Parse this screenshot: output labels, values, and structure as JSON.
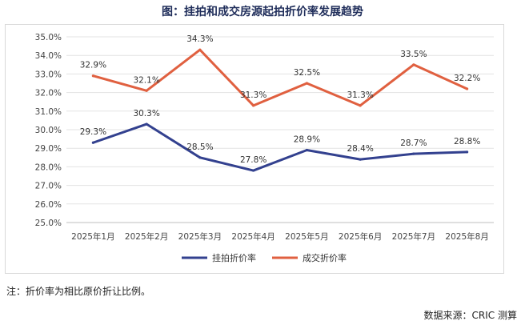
{
  "chart_data": {
    "type": "line",
    "title": "图：挂拍和成交房源起拍折价率发展趋势",
    "categories": [
      "2025年1月",
      "2025年2月",
      "2025年3月",
      "2025年4月",
      "2025年5月",
      "2025年6月",
      "2025年7月",
      "2025年8月"
    ],
    "series": [
      {
        "name": "挂拍折价率",
        "color": "#33418f",
        "values": [
          29.3,
          30.3,
          28.5,
          27.8,
          28.9,
          28.4,
          28.7,
          28.8
        ],
        "labels": [
          "29.3%",
          "30.3%",
          "28.5%",
          "27.8%",
          "28.9%",
          "28.4%",
          "28.7%",
          "28.8%"
        ]
      },
      {
        "name": "成交折价率",
        "color": "#e06040",
        "values": [
          32.9,
          32.1,
          34.3,
          31.3,
          32.5,
          31.3,
          33.5,
          32.2
        ],
        "labels": [
          "32.9%",
          "32.1%",
          "34.3%",
          "31.3%",
          "32.5%",
          "31.3%",
          "33.5%",
          "32.2%"
        ]
      }
    ],
    "ylim": [
      25.0,
      35.0
    ],
    "yticks": [
      "25.0%",
      "26.0%",
      "27.0%",
      "28.0%",
      "29.0%",
      "30.0%",
      "31.0%",
      "32.0%",
      "33.0%",
      "34.0%",
      "35.0%"
    ],
    "xlabel": "",
    "ylabel": "",
    "grid": true,
    "legend_position": "bottom-center"
  },
  "footnote": "注：折价率为相比原价折让比例。",
  "source": "数据来源：CRIC 测算"
}
